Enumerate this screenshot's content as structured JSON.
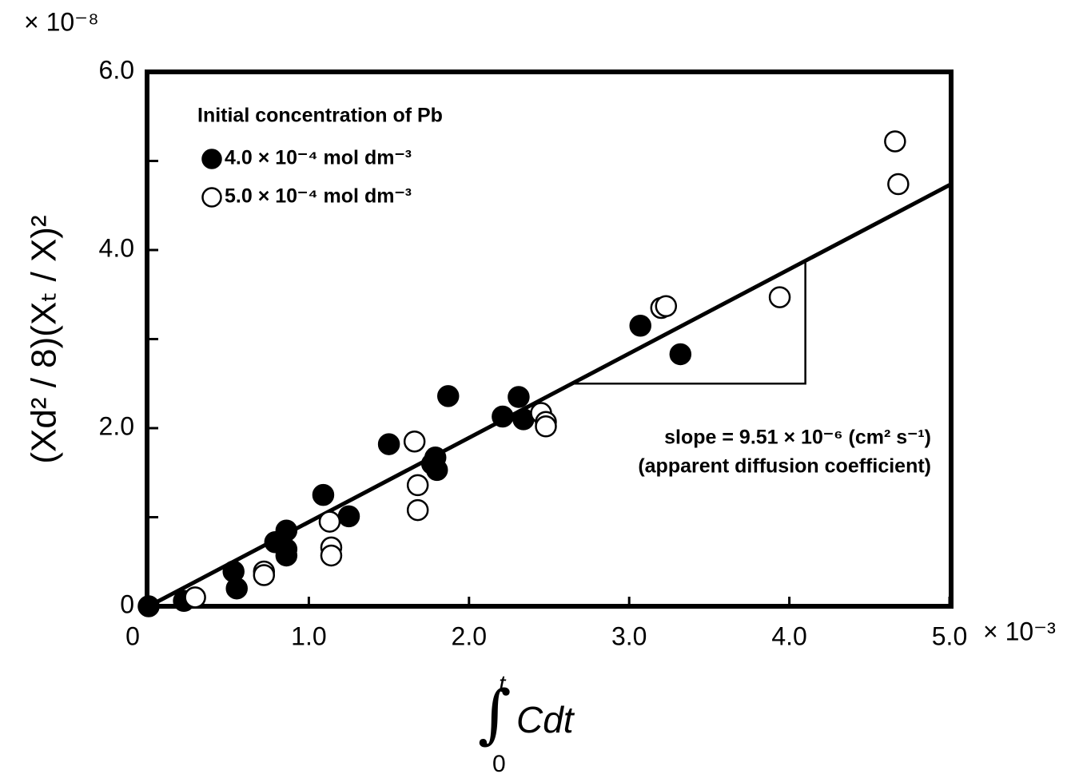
{
  "chart_data": {
    "type": "scatter",
    "y_multiplier": "× 10⁻⁸",
    "x_multiplier": "× 10⁻³",
    "y_label": "(Xd² / 8)(Xₜ / X)²",
    "x_label": {
      "integral": "∫",
      "upper": "t",
      "lower": "0",
      "text": "Cdt"
    },
    "legend_title": "Initial concentration of Pb",
    "xlim": [
      0,
      5
    ],
    "ylim": [
      0,
      6
    ],
    "xticks": [
      {
        "value": 0,
        "label": "0"
      },
      {
        "value": 1,
        "label": "1.0"
      },
      {
        "value": 2,
        "label": "2.0"
      },
      {
        "value": 3,
        "label": "3.0"
      },
      {
        "value": 4,
        "label": "4.0"
      },
      {
        "value": 5,
        "label": "5.0"
      }
    ],
    "yticks": [
      {
        "value": 0,
        "label": "0"
      },
      {
        "value": 2,
        "label": "2.0"
      },
      {
        "value": 4,
        "label": "4.0"
      },
      {
        "value": 6,
        "label": "6.0"
      }
    ],
    "yminor_ticks": [
      1,
      3,
      5
    ],
    "series": [
      {
        "name": "4.0 × 10⁻⁴ mol dm⁻³",
        "color": "#000000",
        "filled": true,
        "x": [
          0,
          0.22,
          0.53,
          0.55,
          0.79,
          0.86,
          0.86,
          0.86,
          1.09,
          1.25,
          1.5,
          1.79,
          1.8,
          1.77,
          1.87,
          2.21,
          2.31,
          2.34,
          3.07,
          3.32
        ],
        "values": [
          0,
          0.06,
          0.39,
          0.2,
          0.72,
          0.85,
          0.64,
          0.57,
          1.25,
          1.01,
          1.82,
          1.67,
          1.53,
          1.6,
          2.36,
          2.13,
          2.35,
          2.1,
          3.15,
          2.83
        ]
      },
      {
        "name": "5.0 × 10⁻⁴ mol dm⁻³",
        "color": "#000000",
        "filled": false,
        "x": [
          0.29,
          0.72,
          0.72,
          1.13,
          1.14,
          1.14,
          1.66,
          1.68,
          1.68,
          2.45,
          2.48,
          2.48,
          3.2,
          3.23,
          3.94,
          4.66,
          4.68
        ],
        "values": [
          0.1,
          0.39,
          0.35,
          0.95,
          0.66,
          0.57,
          1.85,
          1.36,
          1.08,
          2.17,
          2.07,
          2.02,
          3.35,
          3.37,
          3.47,
          5.22,
          4.74
        ]
      }
    ],
    "fit_line": {
      "x": [
        0,
        5
      ],
      "values": [
        0,
        4.73
      ]
    },
    "slope_triangle": {
      "x": [
        2.65,
        4.1,
        4.1
      ],
      "values": [
        2.5,
        2.5,
        3.89
      ]
    },
    "annotations": [
      "slope = 9.51 × 10⁻⁶ (cm² s⁻¹)",
      "(apparent diffusion coefficient)"
    ]
  }
}
